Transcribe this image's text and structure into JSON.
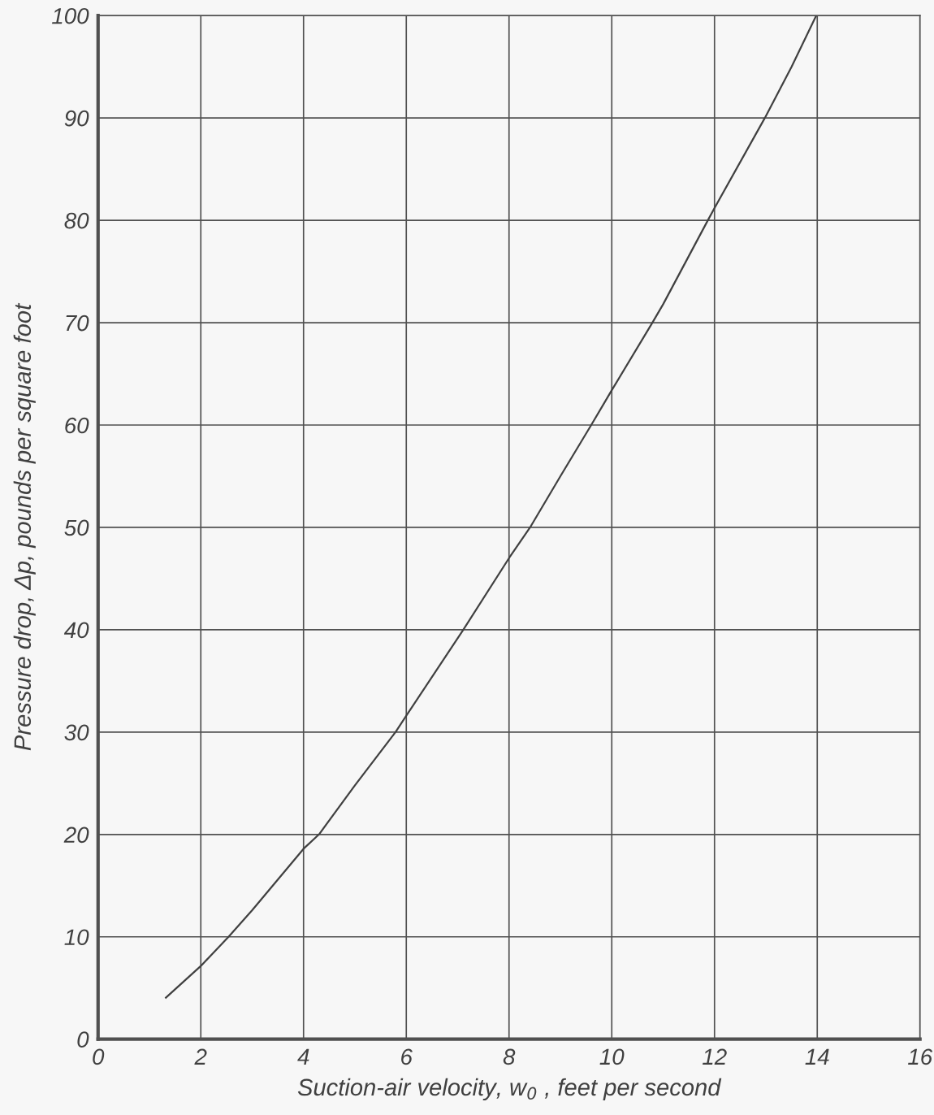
{
  "chart_data": {
    "type": "line",
    "xlabel": "Suction-air velocity, w$_{0}$ , feet per second",
    "ylabel": "Pressure drop, Δp, pounds per square foot",
    "series": [
      {
        "color": "#404040",
        "x": [
          1.32,
          2,
          2.54,
          3,
          4,
          4.3,
          5,
          5.79,
          6,
          7.11,
          8,
          8.41,
          9,
          9.6,
          10,
          10.79,
          11,
          11.87,
          12,
          12.98,
          13.5,
          13.98
        ],
        "values": [
          4.05,
          7.15,
          10,
          12.6,
          18.6,
          20,
          24.8,
          30,
          31.6,
          40,
          47,
          50,
          55,
          60,
          63.4,
          70,
          71.8,
          80,
          81.2,
          90,
          95,
          100
        ]
      }
    ],
    "xlim": [
      0,
      16
    ],
    "xticks": [
      0,
      2,
      4,
      6,
      8,
      10,
      12,
      14,
      16
    ],
    "ylim": [
      0,
      100
    ],
    "yticks": [
      0,
      10,
      20,
      30,
      40,
      50,
      60,
      70,
      80,
      90,
      100
    ],
    "grid": true,
    "line_style": "solid",
    "marker": "none"
  }
}
